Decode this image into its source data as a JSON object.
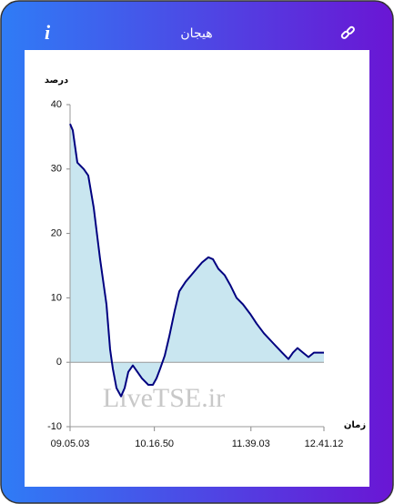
{
  "header": {
    "title": "هیجان"
  },
  "chart_data": {
    "type": "area",
    "ylabel": "درصد",
    "xlabel": "زمان",
    "watermark": "LiveTSE.ir",
    "x": [
      32703,
      32842,
      33075,
      33400,
      33633,
      33911,
      34237,
      34562,
      34748,
      34888,
      35073,
      35306,
      35492,
      35678,
      35910,
      36143,
      36375,
      36700,
      36933,
      37119,
      37305,
      37537,
      37769,
      38048,
      38281,
      38606,
      38885,
      39164,
      39443,
      39768,
      40000,
      40280,
      40605,
      40883,
      41209,
      41534,
      41906,
      42231,
      42603,
      43068,
      43533,
      43858,
      44091,
      44323,
      44602,
      44881,
      45160,
      45672
    ],
    "values": [
      37,
      36,
      31,
      30,
      29,
      24,
      16,
      9,
      2,
      -1,
      -4,
      -5.3,
      -4,
      -1.5,
      -0.5,
      -1.5,
      -2.5,
      -3.5,
      -3.5,
      -2.5,
      -1,
      1,
      4,
      8,
      11,
      12.5,
      13.5,
      14.5,
      15.5,
      16.3,
      16,
      14.5,
      13.5,
      12,
      10,
      9,
      7.5,
      6,
      4.5,
      3,
      1.5,
      0.5,
      1.5,
      2.2,
      1.5,
      0.8,
      1.5,
      1.5
    ],
    "color": "#000080",
    "fill": "#c9e6f0",
    "xlim": [
      32703,
      45672
    ],
    "xticks": [
      {
        "value": 32703,
        "label": "09.05.03"
      },
      {
        "value": 37010,
        "label": "10.16.50"
      },
      {
        "value": 41943,
        "label": "11.39.03"
      },
      {
        "value": 45672,
        "label": "12.41.12"
      }
    ],
    "ylim": [
      -10,
      40
    ],
    "yticks": [
      -10,
      0,
      10,
      20,
      30,
      40
    ]
  }
}
